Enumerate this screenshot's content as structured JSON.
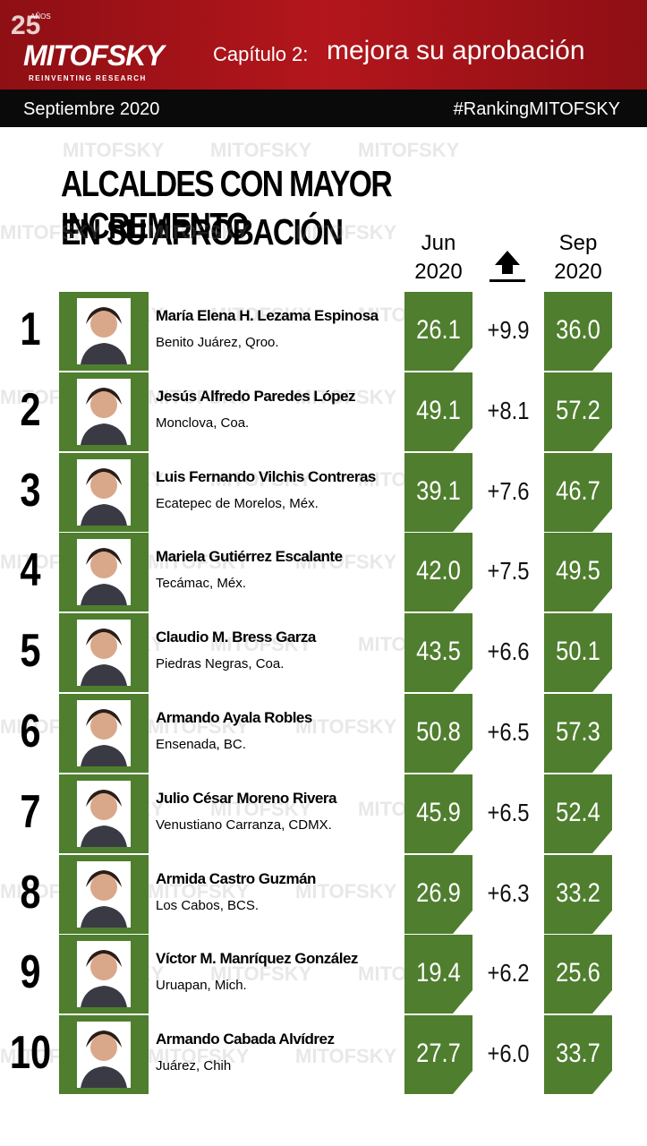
{
  "header": {
    "logo_years": "25",
    "logo_years_word": "AÑOS",
    "logo": "MITOFSKY",
    "tagline": "REINVENTING RESEARCH",
    "chapter_label": "Capítulo 2:",
    "chapter_title": "mejora su aprobación",
    "date": "Septiembre 2020",
    "hashtag": "#RankingMITOFSKY"
  },
  "title": {
    "line1": "ALCALDES CON MAYOR INCREMENTO",
    "line2": "EN SU APROBACIÓN"
  },
  "columns": {
    "jun": [
      "Jun",
      "2020"
    ],
    "sep": [
      "Sep",
      "2020"
    ]
  },
  "rows": [
    {
      "rank": "1",
      "name": "María Elena H. Lezama Espinosa",
      "place": "Benito Juárez, Qroo.",
      "jun": "26.1",
      "change": "+9.9",
      "sep": "36.0"
    },
    {
      "rank": "2",
      "name": "Jesús Alfredo Paredes López",
      "place": "Monclova, Coa.",
      "jun": "49.1",
      "change": "+8.1",
      "sep": "57.2"
    },
    {
      "rank": "3",
      "name": "Luis Fernando Vilchis Contreras",
      "place": "Ecatepec de Morelos, Méx.",
      "jun": "39.1",
      "change": "+7.6",
      "sep": "46.7"
    },
    {
      "rank": "4",
      "name": "Mariela Gutiérrez Escalante",
      "place": "Tecámac, Méx.",
      "jun": "42.0",
      "change": "+7.5",
      "sep": "49.5"
    },
    {
      "rank": "5",
      "name": "Claudio M. Bress Garza",
      "place": "Piedras Negras, Coa.",
      "jun": "43.5",
      "change": "+6.6",
      "sep": "50.1"
    },
    {
      "rank": "6",
      "name": "Armando Ayala Robles",
      "place": "Ensenada, BC.",
      "jun": "50.8",
      "change": "+6.5",
      "sep": "57.3"
    },
    {
      "rank": "7",
      "name": "Julio César Moreno Rivera",
      "place": "Venustiano Carranza, CDMX.",
      "jun": "45.9",
      "change": "+6.5",
      "sep": "52.4"
    },
    {
      "rank": "8",
      "name": "Armida Castro Guzmán",
      "place": "Los Cabos, BCS.",
      "jun": "26.9",
      "change": "+6.3",
      "sep": "33.2"
    },
    {
      "rank": "9",
      "name": "Víctor M. Manríquez González",
      "place": "Uruapan, Mich.",
      "jun": "19.4",
      "change": "+6.2",
      "sep": "25.6"
    },
    {
      "rank": "10",
      "name": "Armando Cabada Alvídrez",
      "place": "Juárez, Chih",
      "jun": "27.7",
      "change": "+6.0",
      "sep": "33.7"
    }
  ]
}
